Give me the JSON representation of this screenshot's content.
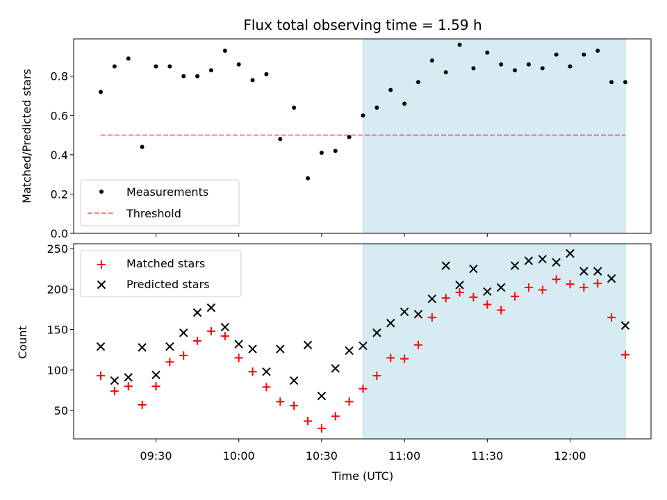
{
  "chart_data": [
    {
      "type": "scatter",
      "title": "Flux total observing time = 1.59 h",
      "xlabel": "",
      "ylabel": "Matched/Predicted stars",
      "ylim": [
        0,
        1
      ],
      "yticks": [
        "0.0",
        "0.2",
        "0.4",
        "0.6",
        "0.8"
      ],
      "x": [
        "09:10",
        "09:15",
        "09:20",
        "09:25",
        "09:30",
        "09:35",
        "09:40",
        "09:45",
        "09:50",
        "09:55",
        "10:00",
        "10:05",
        "10:10",
        "10:15",
        "10:20",
        "10:25",
        "10:30",
        "10:35",
        "10:40",
        "10:45",
        "10:50",
        "10:55",
        "11:00",
        "11:05",
        "11:10",
        "11:15",
        "11:20",
        "11:25",
        "11:30",
        "11:35",
        "11:40",
        "11:45",
        "11:50",
        "11:55",
        "12:00",
        "12:05",
        "12:10",
        "12:15",
        "12:20"
      ],
      "series": [
        {
          "name": "Measurements",
          "values": [
            0.72,
            0.85,
            0.89,
            0.44,
            0.85,
            0.85,
            0.8,
            0.8,
            0.83,
            0.93,
            0.86,
            0.78,
            0.81,
            0.48,
            0.64,
            0.28,
            0.41,
            0.42,
            0.49,
            0.6,
            0.64,
            0.73,
            0.66,
            0.77,
            0.88,
            0.82,
            0.96,
            0.84,
            0.92,
            0.86,
            0.83,
            0.86,
            0.84,
            0.91,
            0.85,
            0.91,
            0.93,
            0.77,
            0.77
          ]
        },
        {
          "name": "Threshold",
          "values": [
            0.5,
            0.5
          ],
          "x": [
            "09:10",
            "12:20"
          ]
        }
      ],
      "shaded_region": {
        "x": [
          "10:45",
          "12:20"
        ],
        "color": "#add8e6"
      },
      "legend": "lower-left"
    },
    {
      "type": "scatter",
      "title": "",
      "xlabel": "Time (UTC)",
      "ylabel": "Count",
      "ylim": [
        15,
        255
      ],
      "yticks": [
        "50",
        "100",
        "150",
        "200",
        "250"
      ],
      "xticks": [
        "09:30",
        "10:00",
        "10:30",
        "11:00",
        "11:30",
        "12:00"
      ],
      "x": [
        "09:10",
        "09:15",
        "09:20",
        "09:25",
        "09:30",
        "09:35",
        "09:40",
        "09:45",
        "09:50",
        "09:55",
        "10:00",
        "10:05",
        "10:10",
        "10:15",
        "10:20",
        "10:25",
        "10:30",
        "10:35",
        "10:40",
        "10:45",
        "10:50",
        "10:55",
        "11:00",
        "11:05",
        "11:10",
        "11:15",
        "11:20",
        "11:25",
        "11:30",
        "11:35",
        "11:40",
        "11:45",
        "11:50",
        "11:55",
        "12:00",
        "12:05",
        "12:10",
        "12:15",
        "12:20"
      ],
      "series": [
        {
          "name": "Matched stars",
          "marker": "+",
          "color": "#ff0000",
          "values": [
            93,
            74,
            80,
            57,
            80,
            110,
            118,
            136,
            148,
            142,
            115,
            98,
            79,
            61,
            56,
            37,
            28,
            43,
            61,
            77,
            93,
            115,
            114,
            131,
            165,
            189,
            196,
            190,
            181,
            174,
            191,
            202,
            199,
            212,
            206,
            202,
            207,
            165,
            119
          ]
        },
        {
          "name": "Predicted stars",
          "marker": "x",
          "color": "#000000",
          "values": [
            129,
            87,
            91,
            128,
            94,
            129,
            146,
            171,
            177,
            153,
            132,
            126,
            98,
            126,
            87,
            131,
            68,
            102,
            124,
            130,
            146,
            158,
            172,
            169,
            188,
            229,
            205,
            225,
            197,
            202,
            229,
            235,
            237,
            233,
            244,
            222,
            222,
            213,
            155
          ]
        }
      ],
      "shaded_region": {
        "x": [
          "10:45",
          "12:20"
        ],
        "color": "#add8e6"
      },
      "legend": "upper-left"
    }
  ]
}
